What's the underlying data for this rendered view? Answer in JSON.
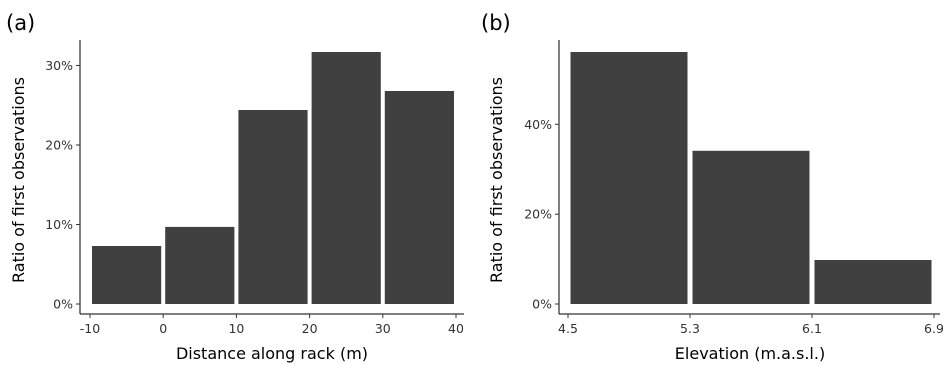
{
  "chart_data": [
    {
      "type": "bar",
      "panel_label": "(a)",
      "xlabel": "Distance along rack (m)",
      "ylabel": "Ratio of first observations",
      "x_bins": [
        [
          -10,
          0
        ],
        [
          0,
          10
        ],
        [
          10,
          20
        ],
        [
          20,
          30
        ],
        [
          30,
          40
        ]
      ],
      "values": [
        7.3,
        9.7,
        24.4,
        31.7,
        26.8
      ],
      "x_ticks": [
        -10,
        0,
        10,
        20,
        30,
        40
      ],
      "x_tick_labels": [
        "-10",
        "0",
        "10",
        "20",
        "30",
        "40"
      ],
      "y_ticks": [
        0,
        10,
        20,
        30
      ],
      "y_tick_labels": [
        "0%",
        "10%",
        "20%",
        "30%"
      ],
      "xlim": [
        -10,
        40
      ],
      "ylim": [
        0,
        31.7
      ],
      "bar_color": "#404040",
      "grid": false
    },
    {
      "type": "bar",
      "panel_label": "(b)",
      "xlabel": "Elevation (m.a.s.l.)",
      "ylabel": "Ratio of first observations",
      "x_bins": [
        [
          4.5,
          5.3
        ],
        [
          5.3,
          6.1
        ],
        [
          6.1,
          6.9
        ]
      ],
      "values": [
        56.1,
        34.1,
        9.8
      ],
      "x_ticks": [
        4.5,
        5.3,
        6.1,
        6.9
      ],
      "x_tick_labels": [
        "4.5",
        "5.3",
        "6.1",
        "6.9"
      ],
      "y_ticks": [
        0,
        20,
        40
      ],
      "y_tick_labels": [
        "0%",
        "20%",
        "40%"
      ],
      "xlim": [
        4.5,
        6.9
      ],
      "ylim": [
        0,
        56.1
      ],
      "bar_color": "#404040",
      "grid": false
    }
  ]
}
